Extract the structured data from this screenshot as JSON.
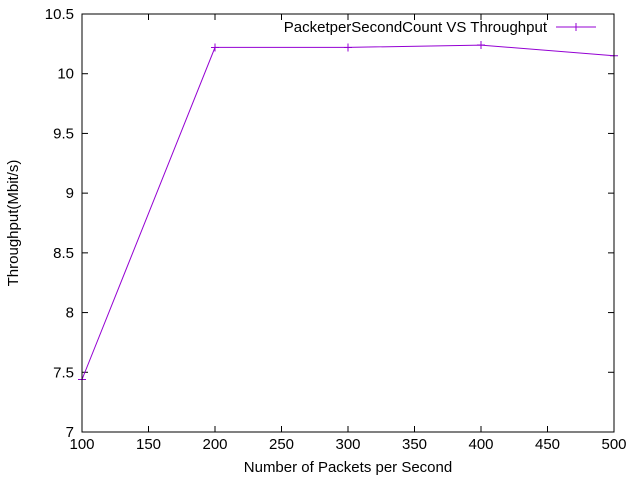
{
  "chart_data": {
    "type": "line",
    "title": "",
    "xlabel": "Number of Packets per Second",
    "ylabel": "Throughput(Mbit/s)",
    "xlim": [
      100,
      500
    ],
    "ylim": [
      7,
      10.5
    ],
    "x_ticks": [
      "100",
      "150",
      "200",
      "250",
      "300",
      "350",
      "400",
      "450",
      "500"
    ],
    "y_ticks": [
      "7",
      "7.5",
      "8",
      "8.5",
      "9",
      "9.5",
      "10",
      "10.5"
    ],
    "grid": false,
    "legend_position": "top-right",
    "series": [
      {
        "name": "PacketperSecondCount VS Throughput",
        "color": "#9400d3",
        "marker": "plus",
        "x": [
          100,
          200,
          300,
          400,
          500
        ],
        "y": [
          7.44,
          10.22,
          10.22,
          10.24,
          10.15
        ]
      }
    ]
  }
}
